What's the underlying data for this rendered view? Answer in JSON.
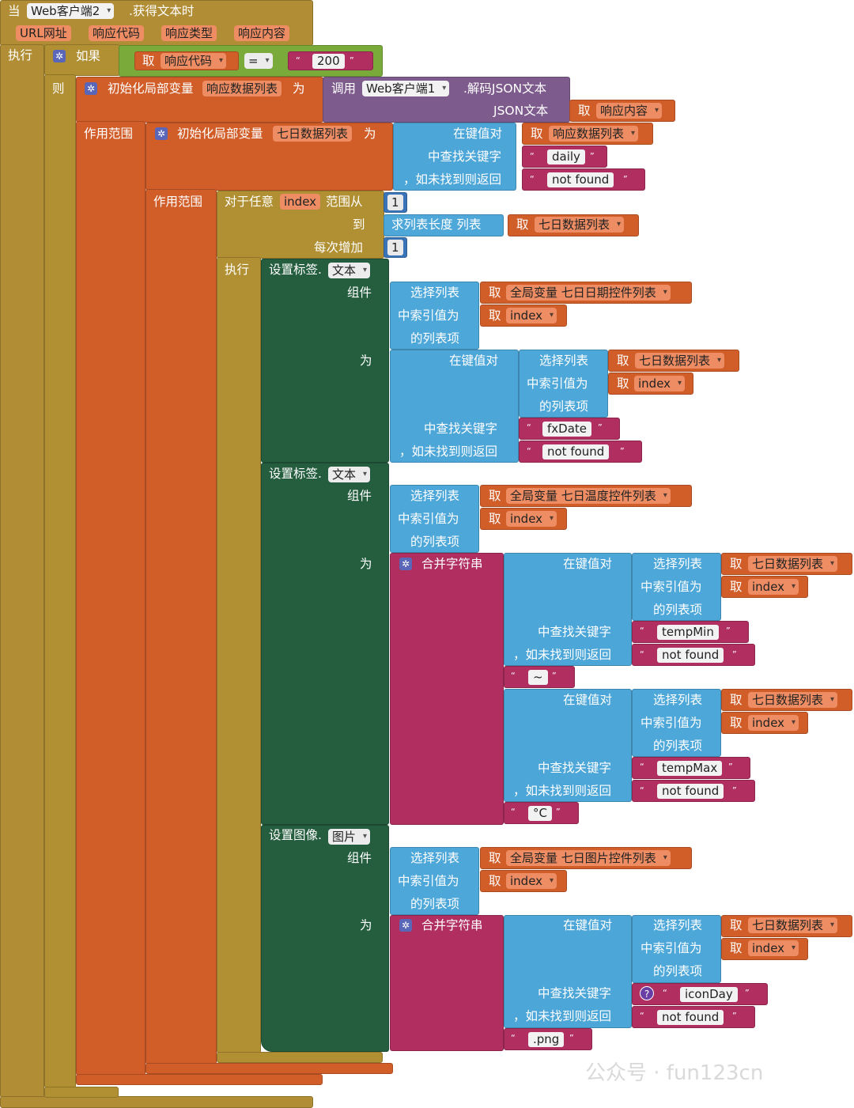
{
  "colors": {
    "event": "#b18e35",
    "control": "#b19033",
    "variable": "#d15d29",
    "procedure": "#7e5b8d",
    "dictionary": "#4ca6d8",
    "list": "#4da7d9",
    "component": "#245e3e",
    "text": "#b02e60",
    "math": "#3a74b8",
    "logic": "#7aaa3a"
  },
  "event": {
    "when": "当",
    "component": "Web客户端2",
    "event": ".获得文本时",
    "params": [
      "URL网址",
      "响应代码",
      "响应类型",
      "响应内容"
    ],
    "do": "执行"
  },
  "if_block": {
    "if": "如果",
    "get": "取",
    "get_var": "响应代码",
    "op": "=",
    "value": "200",
    "then": "则"
  },
  "init1": {
    "label": "初始化局部变量",
    "name": "响应数据列表",
    "as": "为",
    "scope": "作用范围",
    "call": "调用",
    "call_comp": "Web客户端1",
    "call_method": ".解码JSON文本",
    "json_label": "JSON文本",
    "get": "取",
    "get_var": "响应内容"
  },
  "init2": {
    "label": "初始化局部变量",
    "name": "七日数据列表",
    "as": "为",
    "scope": "作用范围",
    "lookup": "在键值对",
    "get": "取",
    "get_var": "响应数据列表",
    "find_key": "中查找关键字",
    "key": "daily",
    "not_found_label": "，如未找到则返回",
    "not_found": "not found"
  },
  "for_range": {
    "label": "对于任意",
    "var": "index",
    "from": "范围从",
    "from_val": "1",
    "to": "到",
    "length_label": "求列表长度  列表",
    "get": "取",
    "get_var": "七日数据列表",
    "step": "每次增加",
    "step_val": "1",
    "do": "执行"
  },
  "common": {
    "set_label": "设置标签.",
    "text_prop": "文本",
    "component": "组件",
    "select": "选择列表",
    "at_index": "中索引值为",
    "item": "的列表项",
    "get": "取",
    "global": "全局变量",
    "index": "index",
    "to": "为",
    "lookup": "在键值对",
    "find_key": "中查找关键字",
    "not_found_label": "，如未找到则返回",
    "not_found": "not found",
    "seven_data": "七日数据列表",
    "join": "合并字符串",
    "set_image": "设置图像.",
    "image_prop": "图片",
    "quote_open": "“",
    "quote_close": "”",
    "gear": "✲",
    "help": "?"
  },
  "set1": {
    "global_list": "七日日期控件列表",
    "key": "fxDate"
  },
  "set2": {
    "global_list": "七日温度控件列表",
    "key1": "tempMin",
    "sep": "~",
    "key2": "tempMax",
    "unit": "°C"
  },
  "set3": {
    "global_list": "七日图片控件列表",
    "key": "iconDay",
    "ext": ".png"
  },
  "watermark": "公众号 · fun123cn"
}
